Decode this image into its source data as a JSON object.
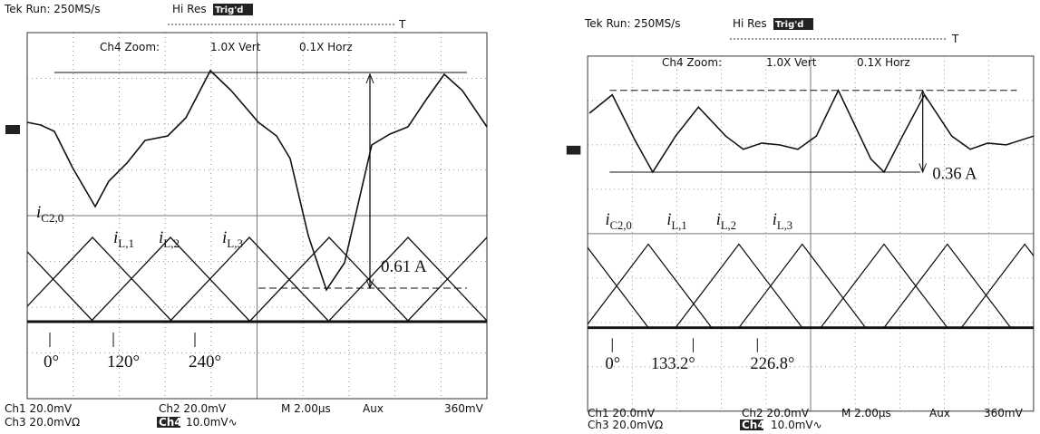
{
  "panels": [
    {
      "header": {
        "run": "Tek Run: 250MS/s",
        "mode": "Hi Res",
        "trigger": "Trig'd",
        "marker": "T"
      },
      "zoom": {
        "label": "Ch4 Zoom:",
        "vert": "1.0X Vert",
        "horz": "0.1X Horz"
      },
      "peak": "0.61 A",
      "currents": [
        {
          "symbol": "i",
          "subscript": "C2,0"
        },
        {
          "symbol": "i",
          "subscript": "L,1"
        },
        {
          "symbol": "i",
          "subscript": "L,2"
        },
        {
          "symbol": "i",
          "subscript": "L,3"
        }
      ],
      "angles": [
        "0°",
        "120°",
        "240°"
      ],
      "footer": {
        "ch1": "Ch1 20.0mV",
        "ch2": "Ch2 20.0mV",
        "timebase": "M 2.00µs",
        "aux": "Aux",
        "level": "360mV",
        "ch3": "Ch3 20.0mVΩ",
        "ch4": "Ch4",
        "ch4_scale": "10.0mV∿"
      }
    },
    {
      "header": {
        "run": "Tek Run: 250MS/s",
        "mode": "Hi Res",
        "trigger": "Trig'd",
        "marker": "T"
      },
      "zoom": {
        "label": "Ch4 Zoom:",
        "vert": "1.0X Vert",
        "horz": "0.1X Horz"
      },
      "peak": "0.36 A",
      "currents": [
        {
          "symbol": "i",
          "subscript": "C2,0"
        },
        {
          "symbol": "i",
          "subscript": "L,1"
        },
        {
          "symbol": "i",
          "subscript": "L,2"
        },
        {
          "symbol": "i",
          "subscript": "L,3"
        }
      ],
      "angles": [
        "0°",
        "133.2°",
        "226.8°"
      ],
      "footer": {
        "ch1": "Ch1 20.0mV",
        "ch2": "Ch2 20.0mV",
        "timebase": "M 2.00µs",
        "aux": "Aux",
        "level": "360mV",
        "ch3": "Ch3 20.0mVΩ",
        "ch4": "Ch4",
        "ch4_scale": "10.0mV∿"
      }
    }
  ]
}
